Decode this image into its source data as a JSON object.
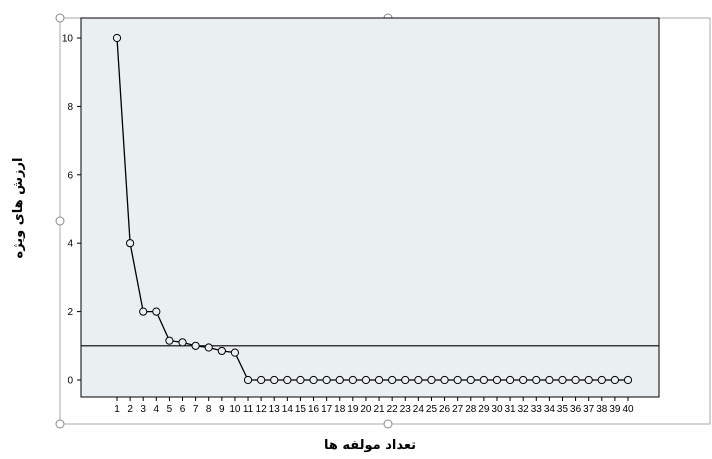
{
  "chart_data": {
    "type": "line",
    "xlabel": "تعداد مولفه ها",
    "ylabel": "ارزش های ویژه",
    "x": [
      1,
      2,
      3,
      4,
      5,
      6,
      7,
      8,
      9,
      10,
      11,
      12,
      13,
      14,
      15,
      16,
      17,
      18,
      19,
      20,
      21,
      22,
      23,
      24,
      25,
      26,
      27,
      28,
      29,
      30,
      31,
      32,
      33,
      34,
      35,
      36,
      37,
      38,
      39,
      40
    ],
    "values": [
      10.0,
      4.0,
      2.0,
      2.0,
      1.15,
      1.1,
      1.0,
      0.95,
      0.85,
      0.8,
      0,
      0,
      0,
      0,
      0,
      0,
      0,
      0,
      0,
      0,
      0,
      0,
      0,
      0,
      0,
      0,
      0,
      0,
      0,
      0,
      0,
      0,
      0,
      0,
      0,
      0,
      0,
      0,
      0,
      0
    ],
    "ylim": [
      -0.5,
      10.6
    ],
    "yticks": [
      0,
      2,
      4,
      6,
      8,
      10
    ],
    "reference_line": 1,
    "grid": false,
    "colors": {
      "plot_background": "#eaeff2",
      "line": "#000000",
      "marker_fill": "#eaeff2",
      "frame": "#000000",
      "selection_frame": "#aaaaaa"
    }
  }
}
